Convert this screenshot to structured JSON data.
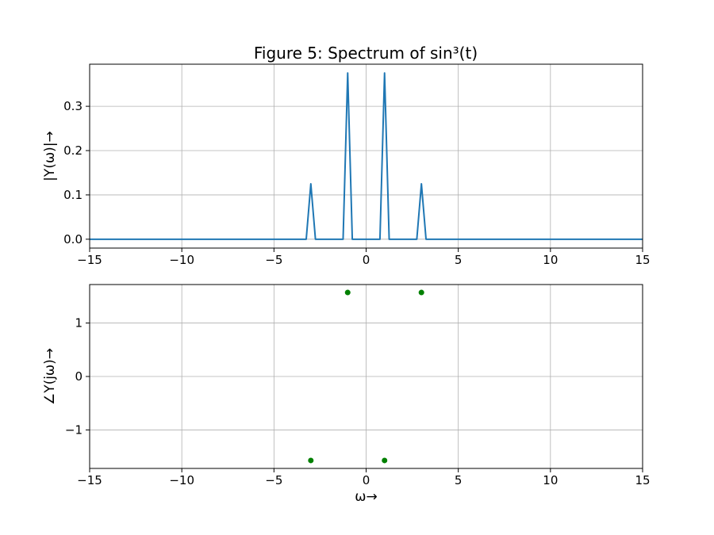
{
  "figure": {
    "title": "Figure 5: Spectrum of sin³(t)"
  },
  "chart_data": [
    {
      "type": "line",
      "ylabel": "|Y(ω)|→",
      "xlim": [
        -15,
        15
      ],
      "ylim": [
        -0.02,
        0.395
      ],
      "grid": true,
      "xticks": [
        -15,
        -10,
        -5,
        0,
        5,
        10,
        15
      ],
      "xtick_labels": [
        "−15",
        "−10",
        "−5",
        "0",
        "5",
        "10",
        "15"
      ],
      "yticks": [
        0.0,
        0.1,
        0.2,
        0.3
      ],
      "ytick_labels": [
        "0.0",
        "0.1",
        "0.2",
        "0.3"
      ],
      "color": "#1f77b4",
      "series": [
        {
          "x": [
            -15,
            -3.25,
            -3.0,
            -2.75,
            -1.25,
            -1.0,
            -0.75,
            0.75,
            1.0,
            1.25,
            2.75,
            3.0,
            3.25,
            15
          ],
          "y": [
            0,
            0,
            0.125,
            0,
            0,
            0.375,
            0,
            0,
            0.375,
            0,
            0,
            0.125,
            0,
            0
          ]
        }
      ]
    },
    {
      "type": "scatter",
      "xlabel": "ω→",
      "ylabel": "∠Y(jω)→",
      "xlim": [
        -15,
        15
      ],
      "ylim": [
        -1.72,
        1.72
      ],
      "grid": true,
      "xticks": [
        -15,
        -10,
        -5,
        0,
        5,
        10,
        15
      ],
      "xtick_labels": [
        "−15",
        "−10",
        "−5",
        "0",
        "5",
        "10",
        "15"
      ],
      "yticks": [
        -1,
        0,
        1
      ],
      "ytick_labels": [
        "−1",
        "0",
        "1"
      ],
      "color": "#008000",
      "series": [
        {
          "x": [
            -3,
            -1,
            1,
            3
          ],
          "y": [
            -1.5708,
            1.5708,
            -1.5708,
            1.5708
          ]
        }
      ]
    }
  ]
}
